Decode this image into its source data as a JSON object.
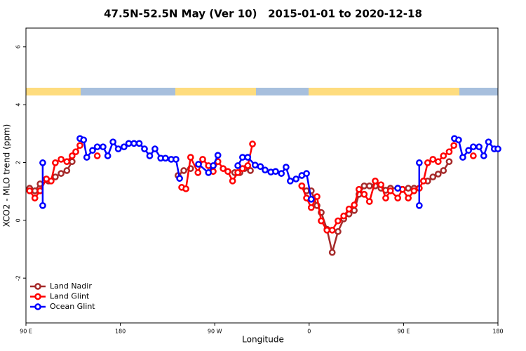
{
  "chart_data": {
    "type": "line",
    "title": "47.5N-52.5N May (Ver 10)   2015-01-01 to 2020-12-18",
    "xlabel": "Longitude",
    "ylabel": "XCO2 - MLO trend (ppm)",
    "xlim": [
      90,
      540
    ],
    "ylim": [
      -3.55,
      6.65
    ],
    "xticks": [
      {
        "value": 90,
        "label": "90 E"
      },
      180,
      {
        "value": 270,
        "label": "90 W"
      },
      {
        "value": 360,
        "label": "0"
      },
      {
        "value": 450,
        "label": "90 E"
      },
      {
        "value": 540,
        "label": "180"
      }
    ],
    "yticks": [
      -2,
      0,
      2,
      4,
      6
    ],
    "legend": "bottom-left",
    "series": [
      {
        "name": "Land Nadir",
        "color": "#a52a2a",
        "x": [
          93.5,
          98.5,
          103.5,
          111.5,
          118,
          123.5,
          129,
          134,
          null,
          235,
          240.5,
          247,
          null,
          289,
          294,
          298.5,
          304,
          null,
          353,
          357.5,
          362,
          367.5,
          371.5,
          377,
          382,
          387.5,
          393,
          398,
          403,
          407.5,
          412.5,
          417.5,
          423,
          428.5,
          433,
          437.5,
          444.5,
          449,
          454.5,
          460,
          null,
          473,
          478,
          483,
          488,
          493.5
        ],
        "values": [
          1.11,
          1.02,
          1.26,
          1.36,
          1.5,
          1.62,
          1.72,
          2.03,
          null,
          1.55,
          1.72,
          1.79,
          null,
          1.65,
          1.65,
          1.79,
          1.72,
          null,
          1.19,
          1.02,
          1.02,
          0.51,
          0.27,
          -0.31,
          -1.11,
          -0.39,
          0.05,
          0.22,
          0.34,
          0.9,
          1.19,
          1.19,
          1.19,
          1.11,
          1.04,
          1.11,
          1.11,
          1.07,
          1.11,
          1.11,
          null,
          1.36,
          1.5,
          1.6,
          1.72,
          2.03
        ]
      },
      {
        "name": "Land Glint",
        "color": "#ff0000",
        "x": [
          93.5,
          98.5,
          103.5,
          109.5,
          114,
          118,
          123.5,
          129,
          134,
          137.5,
          141.5,
          null,
          158,
          null,
          238.5,
          242.5,
          247,
          254,
          258.5,
          264,
          268.5,
          273,
          278,
          282.5,
          287,
          292,
          296.5,
          301.5,
          306,
          null,
          353,
          357.5,
          362,
          367.5,
          371.5,
          377,
          382,
          387.5,
          393,
          398,
          403,
          407.5,
          412.5,
          417.5,
          423,
          428.5,
          433,
          437.5,
          444.5,
          449,
          454.5,
          460,
          465,
          469,
          473,
          478,
          483,
          488,
          493.5,
          498,
          null,
          516.5
        ],
        "values": [
          1.02,
          0.77,
          1.02,
          1.43,
          1.36,
          1.99,
          2.11,
          2.03,
          2.23,
          2.37,
          2.59,
          null,
          2.23,
          null,
          1.14,
          1.09,
          2.18,
          1.65,
          2.11,
          1.89,
          1.69,
          2.03,
          1.79,
          1.69,
          1.36,
          1.65,
          1.79,
          1.89,
          2.64,
          null,
          1.19,
          0.77,
          0.44,
          0.82,
          -0.02,
          -0.34,
          -0.34,
          -0.02,
          0.15,
          0.39,
          0.53,
          1.07,
          0.9,
          0.65,
          1.36,
          1.23,
          0.77,
          1.02,
          0.77,
          1.07,
          0.77,
          1.02,
          1.11,
          1.36,
          1.99,
          2.11,
          2.03,
          2.23,
          2.37,
          2.59,
          null,
          2.23
        ]
      },
      {
        "name": "Ocean Glint",
        "color": "#0000ff",
        "x": [
          106,
          106,
          null,
          141.5,
          145,
          148,
          153.5,
          158,
          163.5,
          168,
          173,
          178,
          183.5,
          188,
          193,
          198,
          203,
          208,
          213,
          218.5,
          223,
          228.5,
          233,
          236.5,
          null,
          254.5,
          264,
          268.5,
          273,
          null,
          292,
          296.5,
          301.5,
          308.5,
          313.5,
          318,
          323.5,
          328,
          333.5,
          338,
          342,
          347.5,
          353,
          357.5,
          362,
          null,
          444.5,
          null,
          465,
          465,
          null,
          498.5,
          502.5,
          506.5,
          512,
          516.5,
          522,
          526.5,
          531,
          536.5,
          540
        ],
        "values": [
          1.99,
          0.51,
          null,
          2.83,
          2.78,
          2.18,
          2.42,
          2.54,
          2.54,
          2.23,
          2.71,
          2.47,
          2.54,
          2.66,
          2.66,
          2.66,
          2.47,
          2.23,
          2.47,
          2.15,
          2.15,
          2.11,
          2.11,
          1.45,
          null,
          1.94,
          1.65,
          1.89,
          2.25,
          null,
          1.89,
          2.18,
          2.18,
          1.91,
          1.86,
          1.74,
          1.67,
          1.69,
          1.62,
          1.84,
          1.36,
          1.43,
          1.55,
          1.62,
          0.73,
          null,
          1.11,
          null,
          1.99,
          0.51,
          null,
          2.83,
          2.78,
          2.18,
          2.42,
          2.54,
          2.54,
          2.23,
          2.71,
          2.47,
          2.47
        ]
      }
    ]
  }
}
